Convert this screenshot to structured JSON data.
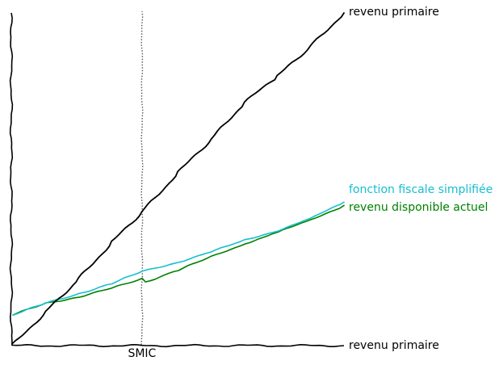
{
  "chart_data": {
    "type": "line",
    "title": "",
    "xlabel": "revenu primaire",
    "ylabel": "",
    "xlim": [
      0,
      100
    ],
    "ylim": [
      0,
      100
    ],
    "grid": false,
    "legend": "none",
    "annotations": [
      {
        "type": "vline",
        "x": 39,
        "label": "SMIC",
        "color": "#555555"
      }
    ],
    "series": [
      {
        "name": "revenu primaire",
        "color": "#000000",
        "x": [
          0,
          10,
          20,
          30,
          39,
          50,
          60,
          70,
          80,
          90,
          100
        ],
        "y": [
          0,
          10,
          20,
          31,
          40,
          52,
          62,
          73,
          81,
          90,
          100
        ]
      },
      {
        "name": "fonction fiscale simplifiée",
        "color": "#17becf",
        "x": [
          0,
          10,
          20,
          30,
          39,
          50,
          60,
          70,
          80,
          90,
          100
        ],
        "y": [
          9,
          12.5,
          15.5,
          18.5,
          22,
          25,
          28,
          31.5,
          34.5,
          38,
          43
        ]
      },
      {
        "name": "revenu disponible actuel",
        "color": "#008000",
        "x": [
          0,
          10,
          20,
          30,
          39,
          40,
          50,
          60,
          70,
          80,
          90,
          100
        ],
        "y": [
          9,
          12.5,
          14.5,
          17,
          20,
          19,
          22.5,
          26.5,
          30.5,
          34,
          37.5,
          42
        ]
      }
    ]
  }
}
